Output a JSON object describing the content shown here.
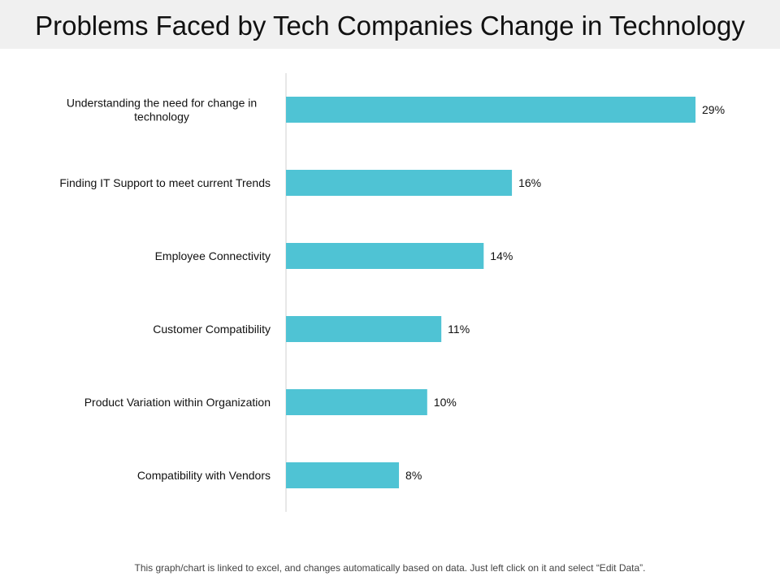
{
  "page": {
    "title": "Problems Faced by Tech Companies Change in Technology",
    "footer": "This graph/chart is linked to excel, and changes automatically based on data. Just left click on it and select “Edit Data”."
  },
  "colors": {
    "bar": "#4fc3d4",
    "axis": "#d0d0d0",
    "text": "#111111",
    "title_bg": "#f0f0f0"
  },
  "chart_data": {
    "type": "bar",
    "orientation": "horizontal",
    "title": "Problems Faced by Tech Companies Change in Technology",
    "xlabel": "",
    "ylabel": "",
    "xlim": [
      0,
      29
    ],
    "grid": false,
    "legend": "none",
    "categories": [
      [
        "Understanding the need for change in",
        "technology"
      ],
      [
        "Finding IT Support to meet current Trends"
      ],
      [
        "Employee Connectivity"
      ],
      [
        "Customer Compatibility"
      ],
      [
        "Product Variation within Organization"
      ],
      [
        "Compatibility with Vendors"
      ]
    ],
    "values": [
      29,
      16,
      14,
      11,
      10,
      8
    ],
    "data_labels": [
      "29%",
      "16%",
      "14%",
      "11%",
      "10%",
      "8%"
    ]
  }
}
